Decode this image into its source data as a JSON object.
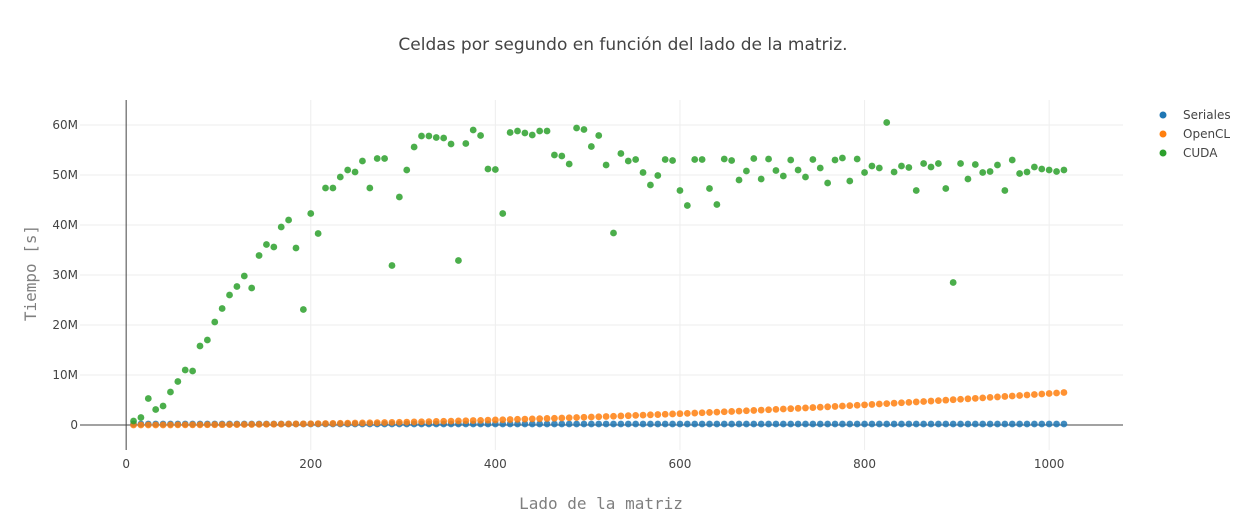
{
  "chart_data": {
    "type": "scatter",
    "title": "Celdas por segundo en función del lado de la matriz.",
    "xlabel": "Lado de la matriz",
    "ylabel": "Tiempo [s]",
    "xlim": [
      -50,
      1080
    ],
    "ylim": [
      -5000000,
      65000000
    ],
    "x_ticks": [
      0,
      200,
      400,
      600,
      800,
      1000
    ],
    "y_ticks": [
      0,
      10000000,
      20000000,
      30000000,
      40000000,
      50000000,
      60000000
    ],
    "x_tick_labels": [
      "0",
      "200",
      "400",
      "600",
      "800",
      "1000"
    ],
    "y_tick_labels": [
      "0",
      "10M",
      "20M",
      "30M",
      "40M",
      "50M",
      "60M"
    ],
    "grid": true,
    "legend_position": "top-right",
    "x_sequence": {
      "start": 8,
      "step": 8,
      "count": 127
    },
    "series": [
      {
        "name": "Seriales",
        "color": "#1f77b4",
        "y_expression": "constant",
        "y_constant": 200000
      },
      {
        "name": "OpenCL",
        "color": "#ff7f0e",
        "y_expression": "quadratic",
        "y_quadratic_coefficient": 6.3,
        "y_at_x_1016": 6500000
      },
      {
        "name": "CUDA",
        "color": "#2ca02c",
        "y": [
          800000,
          1500000,
          5300000,
          3100000,
          3800000,
          6600000,
          8700000,
          11000000,
          10800000,
          15800000,
          17000000,
          20600000,
          23300000,
          26000000,
          27700000,
          29800000,
          27400000,
          33900000,
          36100000,
          35600000,
          39600000,
          41000000,
          35400000,
          23100000,
          42300000,
          38300000,
          47400000,
          47400000,
          49600000,
          51000000,
          50600000,
          52800000,
          47400000,
          53300000,
          53300000,
          31900000,
          45600000,
          51000000,
          55600000,
          57800000,
          57800000,
          57500000,
          57400000,
          56200000,
          32900000,
          56300000,
          59000000,
          57900000,
          51200000,
          51100000,
          42300000,
          58500000,
          58800000,
          58400000,
          58000000,
          58800000,
          58800000,
          54000000,
          53800000,
          52200000,
          59400000,
          59100000,
          55700000,
          57900000,
          52000000,
          38400000,
          54300000,
          52800000,
          53100000,
          50500000,
          48000000,
          49900000,
          53100000,
          52900000,
          46900000,
          43900000,
          53100000,
          53100000,
          47300000,
          44100000,
          53200000,
          52900000,
          49000000,
          50800000,
          53300000,
          49200000,
          53200000,
          50900000,
          49800000,
          53000000,
          51000000,
          49600000,
          53100000,
          51400000,
          48400000,
          53000000,
          53400000,
          48800000,
          53200000,
          50500000,
          51800000,
          51400000,
          60500000,
          50600000,
          51800000,
          51500000,
          46900000,
          52300000,
          51600000,
          52300000,
          47300000,
          28500000,
          52300000,
          49200000,
          52100000,
          50500000,
          50700000,
          52000000,
          46900000,
          53000000,
          50300000,
          50600000,
          51600000,
          51200000,
          51000000,
          50700000,
          51000000
        ]
      }
    ]
  }
}
